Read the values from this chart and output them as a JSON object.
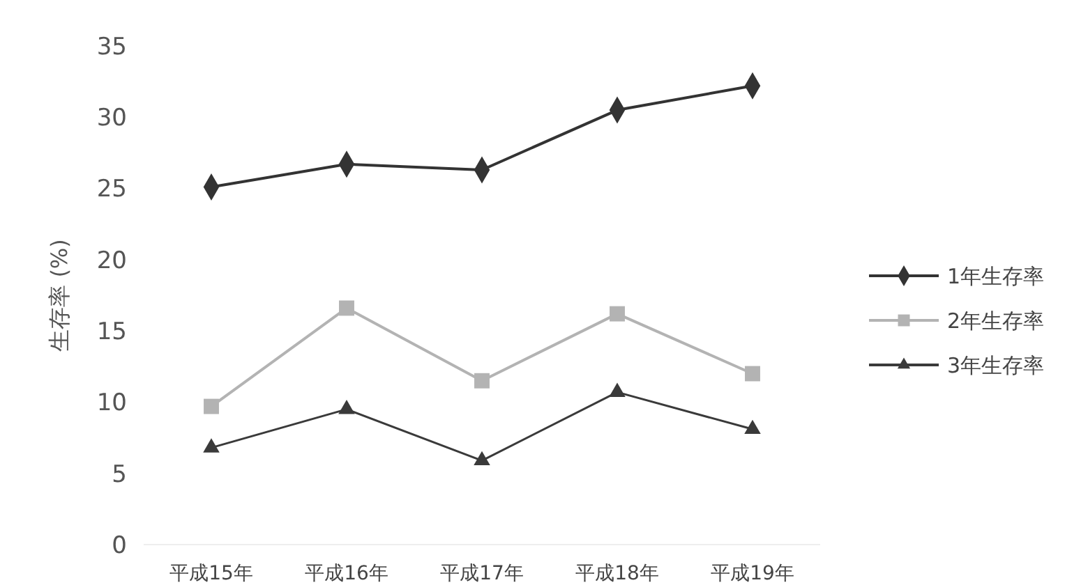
{
  "chart_data": {
    "type": "line",
    "ylabel": "生存率 (%)",
    "categories": [
      "平成15年",
      "平成16年",
      "平成17年",
      "平成18年",
      "平成19年"
    ],
    "series": [
      {
        "name": "1年生存率",
        "color": "#333333",
        "marker": "diamond",
        "values": [
          25.1,
          26.7,
          26.3,
          30.5,
          32.2
        ]
      },
      {
        "name": "2年生存率",
        "color": "#b3b3b3",
        "marker": "square",
        "values": [
          9.7,
          16.6,
          11.5,
          16.2,
          12.0
        ]
      },
      {
        "name": "3年生存率",
        "color": "#3a3a3a",
        "marker": "triangle",
        "values": [
          6.8,
          9.5,
          5.9,
          10.7,
          8.1
        ]
      }
    ],
    "ylim": [
      0,
      35
    ],
    "yticks": [
      0,
      5,
      10,
      15,
      20,
      25,
      30,
      35
    ],
    "grid": false,
    "legend": "right"
  }
}
